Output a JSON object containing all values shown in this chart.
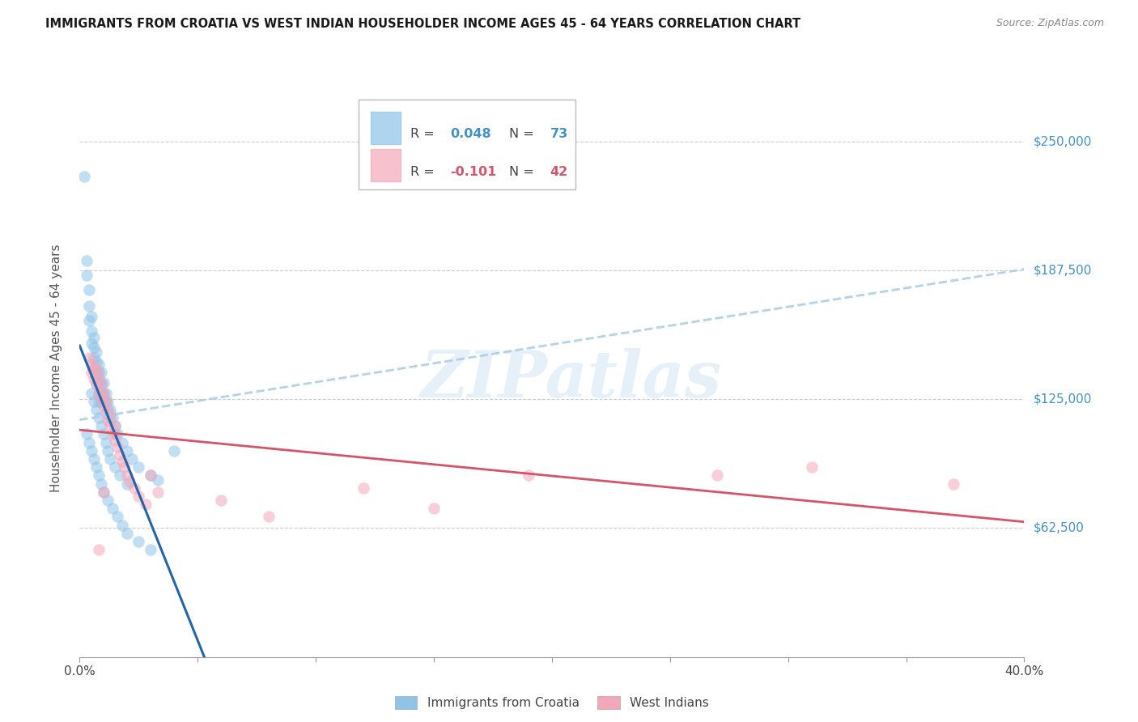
{
  "title": "IMMIGRANTS FROM CROATIA VS WEST INDIAN HOUSEHOLDER INCOME AGES 45 - 64 YEARS CORRELATION CHART",
  "source": "Source: ZipAtlas.com",
  "ylabel": "Householder Income Ages 45 - 64 years",
  "xlim": [
    0.0,
    0.4
  ],
  "ylim": [
    0,
    280000
  ],
  "yticks": [
    0,
    62500,
    125000,
    187500,
    250000
  ],
  "ytick_labels": [
    "",
    "$62,500",
    "$125,000",
    "$187,500",
    "$250,000"
  ],
  "xticks": [
    0.0,
    0.05,
    0.1,
    0.15,
    0.2,
    0.25,
    0.3,
    0.35,
    0.4
  ],
  "croatia_color": "#8ec4e8",
  "westindian_color": "#f4a7b9",
  "croatia_line_color": "#2166ac",
  "westindian_line_color": "#d6546a",
  "dashed_line_color": "#aacfe8",
  "legend_R_croatia": "0.048",
  "legend_N_croatia": "73",
  "legend_R_west": "-0.101",
  "legend_N_west": "42",
  "legend_R_color_croatia": "#4292c6",
  "legend_N_color_croatia": "#4292c6",
  "legend_R_color_west": "#d6546a",
  "legend_N_color_west": "#d6546a",
  "watermark": "ZIPatlas",
  "croatia_x": [
    0.002,
    0.003,
    0.003,
    0.004,
    0.004,
    0.004,
    0.005,
    0.005,
    0.005,
    0.006,
    0.006,
    0.006,
    0.006,
    0.007,
    0.007,
    0.007,
    0.007,
    0.008,
    0.008,
    0.008,
    0.008,
    0.008,
    0.009,
    0.009,
    0.009,
    0.009,
    0.01,
    0.01,
    0.01,
    0.011,
    0.011,
    0.012,
    0.012,
    0.013,
    0.013,
    0.014,
    0.015,
    0.015,
    0.016,
    0.018,
    0.02,
    0.022,
    0.025,
    0.03,
    0.033,
    0.04,
    0.005,
    0.006,
    0.007,
    0.008,
    0.009,
    0.01,
    0.011,
    0.012,
    0.013,
    0.015,
    0.017,
    0.02,
    0.003,
    0.004,
    0.005,
    0.006,
    0.007,
    0.008,
    0.009,
    0.01,
    0.012,
    0.014,
    0.016,
    0.018,
    0.02,
    0.025,
    0.03
  ],
  "croatia_y": [
    233000,
    192000,
    185000,
    178000,
    170000,
    163000,
    165000,
    158000,
    152000,
    155000,
    150000,
    145000,
    140000,
    148000,
    143000,
    138000,
    133000,
    142000,
    138000,
    133000,
    128000,
    124000,
    138000,
    133000,
    128000,
    124000,
    133000,
    128000,
    124000,
    128000,
    124000,
    124000,
    120000,
    120000,
    116000,
    116000,
    112000,
    108000,
    108000,
    104000,
    100000,
    96000,
    92000,
    88000,
    86000,
    100000,
    128000,
    124000,
    120000,
    116000,
    112000,
    108000,
    104000,
    100000,
    96000,
    92000,
    88000,
    84000,
    108000,
    104000,
    100000,
    96000,
    92000,
    88000,
    84000,
    80000,
    76000,
    72000,
    68000,
    64000,
    60000,
    56000,
    52000
  ],
  "westindian_x": [
    0.004,
    0.005,
    0.005,
    0.006,
    0.006,
    0.007,
    0.007,
    0.008,
    0.008,
    0.009,
    0.009,
    0.01,
    0.01,
    0.011,
    0.011,
    0.012,
    0.013,
    0.013,
    0.014,
    0.015,
    0.015,
    0.016,
    0.017,
    0.018,
    0.019,
    0.02,
    0.021,
    0.023,
    0.025,
    0.028,
    0.03,
    0.033,
    0.06,
    0.08,
    0.12,
    0.15,
    0.19,
    0.27,
    0.31,
    0.37,
    0.008,
    0.01
  ],
  "westindian_y": [
    145000,
    142000,
    138000,
    140000,
    135000,
    140000,
    132000,
    136000,
    128000,
    132000,
    125000,
    128000,
    122000,
    124000,
    118000,
    115000,
    118000,
    112000,
    108000,
    112000,
    105000,
    102000,
    98000,
    95000,
    92000,
    88000,
    85000,
    82000,
    78000,
    74000,
    88000,
    80000,
    76000,
    68000,
    82000,
    72000,
    88000,
    88000,
    92000,
    84000,
    52000,
    80000
  ]
}
